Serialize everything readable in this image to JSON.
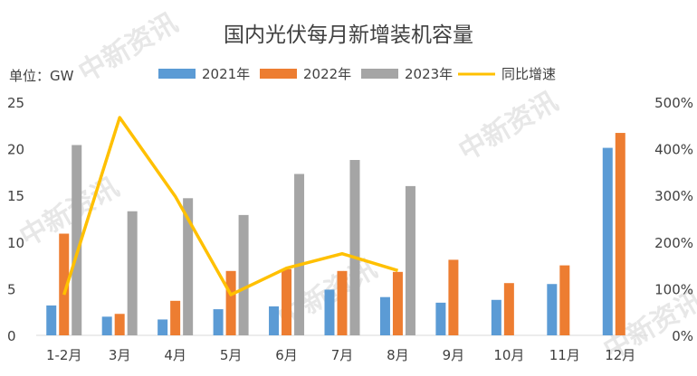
{
  "chart_data": {
    "type": "bar",
    "title": "国内光伏每月新增装机容量",
    "unit_label": "单位：GW",
    "categories": [
      "1-2月",
      "3月",
      "4月",
      "5月",
      "6月",
      "7月",
      "8月",
      "9月",
      "10月",
      "11月",
      "12月"
    ],
    "series": [
      {
        "name": "2021年",
        "type": "bar",
        "axis": "left",
        "color": "#5b9bd5",
        "values": [
          3.2,
          2.0,
          1.7,
          2.8,
          3.1,
          4.9,
          4.1,
          3.5,
          3.8,
          5.5,
          20.1
        ]
      },
      {
        "name": "2022年",
        "type": "bar",
        "axis": "left",
        "color": "#ed7d31",
        "values": [
          10.9,
          2.3,
          3.7,
          6.9,
          7.1,
          6.9,
          6.8,
          8.1,
          5.6,
          7.5,
          21.7
        ]
      },
      {
        "name": "2023年",
        "type": "bar",
        "axis": "left",
        "color": "#a5a5a5",
        "values": [
          20.4,
          13.3,
          14.7,
          12.9,
          17.3,
          18.8,
          16.0,
          null,
          null,
          null,
          null
        ]
      },
      {
        "name": "同比增速",
        "type": "line",
        "axis": "right",
        "color": "#ffc000",
        "values": [
          87,
          467,
          298,
          87,
          144,
          175,
          139,
          null,
          null,
          null,
          null
        ]
      }
    ],
    "y_left": {
      "min": 0,
      "max": 25,
      "ticks": [
        "0",
        "5",
        "10",
        "15",
        "20",
        "25"
      ]
    },
    "y_right": {
      "min": 0,
      "max": 500,
      "ticks": [
        "0%",
        "100%",
        "200%",
        "300%",
        "400%",
        "500%"
      ]
    },
    "grid": false,
    "legend_position": "top"
  },
  "watermark": "中新资讯"
}
